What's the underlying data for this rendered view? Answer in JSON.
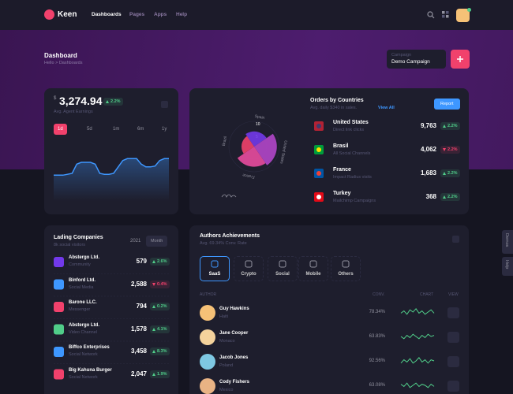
{
  "header": {
    "logo": "Keen",
    "nav": [
      "Dashboards",
      "Pages",
      "Apps",
      "Help"
    ]
  },
  "toolbar": {
    "title": "Dashboard",
    "breadcrumb": [
      "Hello",
      "Dashboards"
    ],
    "select_label": "Campaign",
    "select_value": "Demo Campaign"
  },
  "earnings": {
    "currency": "$",
    "amount": "3,274.94",
    "change": "2.2%",
    "trend": "up",
    "subtitle": "Avg. Agent Earnings",
    "periods": [
      "1d",
      "5d",
      "1m",
      "6m",
      "1y"
    ],
    "active_period": 0,
    "chart": {
      "type": "area",
      "color": "#3e97ff",
      "ylim": [
        0,
        60
      ],
      "values": [
        28,
        28,
        28,
        29,
        30,
        40,
        42,
        42,
        42,
        40,
        30,
        29,
        29,
        30,
        37,
        44,
        46,
        46,
        46,
        40,
        37,
        37,
        38,
        44,
        46,
        46
      ]
    }
  },
  "orders": {
    "title": "Orders by Countries",
    "subtitle": "Avg. daily $340 in sales.",
    "link": "View All",
    "button": "Report",
    "polar": {
      "type": "polar",
      "rlim": [
        0,
        10
      ],
      "rticks": [
        5,
        10
      ],
      "labels": [
        "Spain",
        "United States",
        "France",
        "Brazil"
      ],
      "values": [
        6,
        9,
        8,
        5
      ],
      "colors": [
        "#7239ea",
        "#b146c9",
        "#e84b9e",
        "#f1416c"
      ]
    },
    "rows": [
      {
        "country": "United States",
        "source": "Direct link clicks",
        "value": "9,763",
        "change": "2.2%",
        "trend": "up"
      },
      {
        "country": "Brasil",
        "source": "All Social Channels",
        "value": "4,062",
        "change": "2.2%",
        "trend": "down"
      },
      {
        "country": "France",
        "source": "Impact Radius visits",
        "value": "1,683",
        "change": "2.2%",
        "trend": "up"
      },
      {
        "country": "Turkey",
        "source": "Mailchimp Campaigns",
        "value": "368",
        "change": "2.2%",
        "trend": "up"
      }
    ]
  },
  "companies": {
    "title": "Lading Companies",
    "subtitle": "8k social visitors",
    "year": "2021",
    "button": "Month",
    "rows": [
      {
        "name": "Abstergo Ltd.",
        "channel": "Community",
        "value": "579",
        "change": "2.6%",
        "trend": "up"
      },
      {
        "name": "Binford Ltd.",
        "channel": "Social Media",
        "value": "2,588",
        "change": "0.4%",
        "trend": "down"
      },
      {
        "name": "Barone LLC.",
        "channel": "Messenger",
        "value": "794",
        "change": "0.2%",
        "trend": "up"
      },
      {
        "name": "Abstergo Ltd.",
        "channel": "Video Channel",
        "value": "1,578",
        "change": "4.1%",
        "trend": "up"
      },
      {
        "name": "Biffco Enterprises",
        "channel": "Social Network",
        "value": "3,458",
        "change": "8.3%",
        "trend": "up"
      },
      {
        "name": "Big Kahuna Burger",
        "channel": "Social Network",
        "value": "2,047",
        "change": "1.9%",
        "trend": "up"
      }
    ]
  },
  "authors": {
    "title": "Authors Achievements",
    "subtitle": "Avg. 69.34% Conv. Rate",
    "tabs": [
      "SaaS",
      "Crypto",
      "Social",
      "Mobile",
      "Others"
    ],
    "active_tab": 0,
    "columns": [
      "AUTHOR",
      "CONV.",
      "CHART",
      "VIEW"
    ],
    "chart_ylim": [
      0,
      10
    ],
    "chart_color": "#50cd89",
    "rows": [
      {
        "name": "Guy Hawkins",
        "country": "Haiti",
        "conv": "78.34%",
        "chart": [
          4,
          6,
          3,
          7,
          5,
          8,
          4,
          6,
          3,
          5,
          7,
          4
        ]
      },
      {
        "name": "Jane Cooper",
        "country": "Monaco",
        "conv": "63.83%",
        "chart": [
          5,
          3,
          6,
          4,
          7,
          5,
          3,
          6,
          4,
          7,
          5,
          6
        ]
      },
      {
        "name": "Jacob Jones",
        "country": "Poland",
        "conv": "92.56%",
        "chart": [
          3,
          6,
          4,
          7,
          3,
          5,
          8,
          4,
          6,
          3,
          6,
          5
        ]
      },
      {
        "name": "Cody Fishers",
        "country": "Mexico",
        "conv": "63.08%",
        "chart": [
          6,
          4,
          7,
          3,
          5,
          7,
          4,
          6,
          5,
          3,
          6,
          4
        ]
      }
    ]
  },
  "side": [
    "Demos",
    "Help"
  ]
}
